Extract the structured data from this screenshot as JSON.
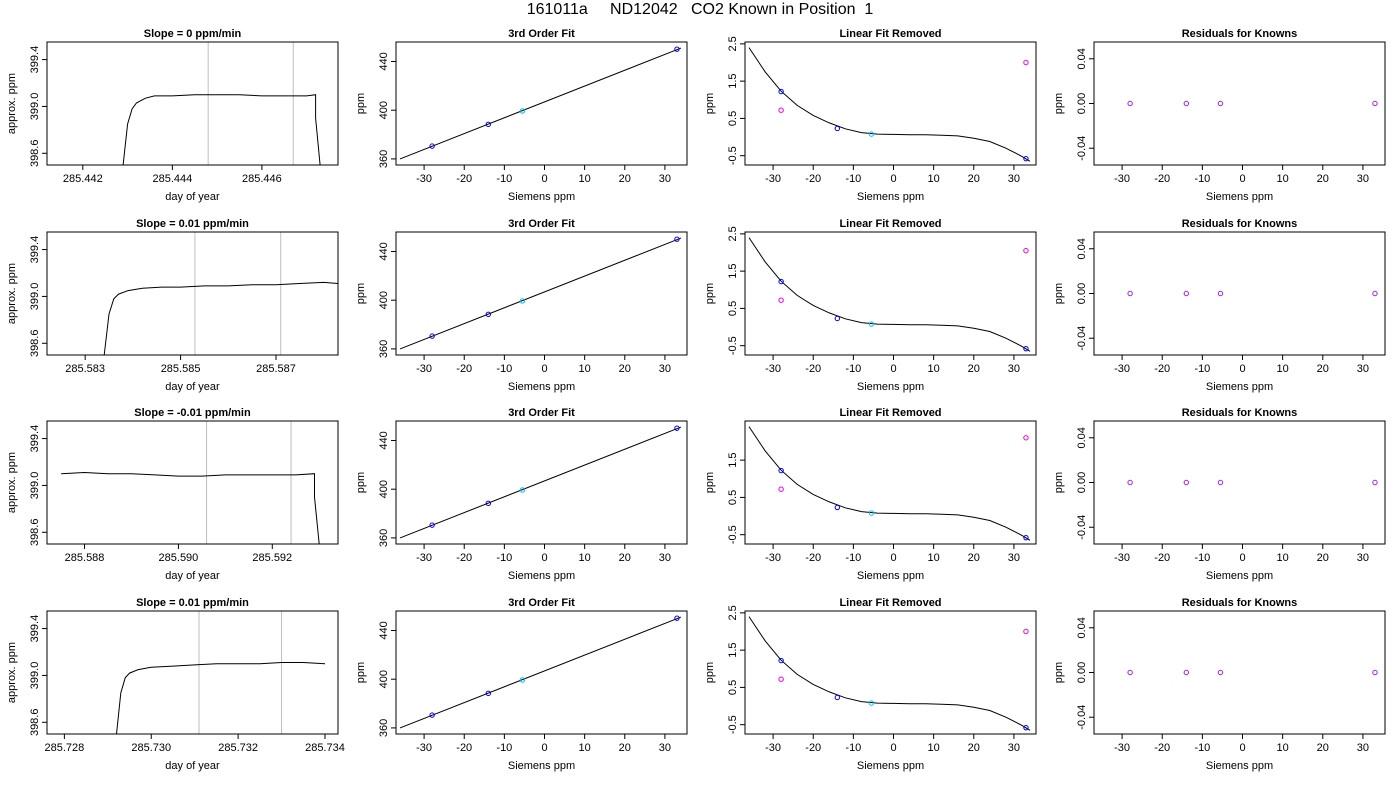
{
  "title": "161011a     ND12042   CO2 Known in Position  1",
  "colors": {
    "frame": "#000000",
    "trace": "#000000",
    "vline": "#bebebe",
    "known_blue": "#0000ff",
    "known_cyan": "#00bfff",
    "known_purple": "#a020f0",
    "known_magenta": "#ee00ee",
    "sample_magenta": "#ee00ee"
  },
  "chart_data": [
    {
      "type": "line",
      "title": "Slope =  0  ppm/min",
      "xlabel": "day of year",
      "ylabel": "approx. ppm",
      "xlim": [
        285.4412,
        285.4477
      ],
      "ylim": [
        398.5,
        399.55
      ],
      "xticks": [
        285.442,
        285.444,
        285.446
      ],
      "xtick_labels": [
        "285.442",
        "285.444",
        "285.446"
      ],
      "yticks": [
        398.6,
        399.0,
        399.4
      ],
      "ytick_labels": [
        "398.6",
        "399.0",
        "399.4"
      ],
      "vlines": [
        285.4448,
        285.4467
      ],
      "x": [
        285.4429,
        285.443,
        285.4431,
        285.4432,
        285.4434,
        285.4436,
        285.444,
        285.4445,
        285.445,
        285.4455,
        285.446,
        285.4465,
        285.447,
        285.4472,
        285.4472,
        285.4473
      ],
      "y": [
        398.5,
        398.85,
        398.98,
        399.03,
        399.07,
        399.09,
        399.09,
        399.1,
        399.1,
        399.1,
        399.09,
        399.09,
        399.09,
        399.1,
        398.9,
        398.5
      ]
    },
    {
      "type": "line",
      "title": "3rd Order Fit",
      "xlabel": "Siemens ppm",
      "ylabel": "ppm",
      "xlim": [
        -37,
        35.5
      ],
      "ylim": [
        355,
        456
      ],
      "xticks": [
        -30,
        -20,
        -10,
        0,
        10,
        20,
        30
      ],
      "xtick_labels": [
        "-30",
        "-20",
        "-10",
        "0",
        "10",
        "20",
        "30"
      ],
      "yticks": [
        360,
        400,
        440
      ],
      "ytick_labels": [
        "360",
        "400",
        "440"
      ],
      "line_x": [
        -36,
        34
      ],
      "line_y": [
        360,
        451
      ],
      "points": [
        {
          "x": -28,
          "y": 370.5
        },
        {
          "x": -14,
          "y": 388.4
        },
        {
          "x": -5.5,
          "y": 399.4
        },
        {
          "x": 33,
          "y": 450.1
        }
      ]
    },
    {
      "type": "line",
      "title": "Linear Fit Removed",
      "xlabel": "Siemens ppm",
      "ylabel": "ppm",
      "xlim": [
        -37,
        35.5
      ],
      "ylim": [
        -0.75,
        2.55
      ],
      "xticks": [
        -30,
        -20,
        -10,
        0,
        10,
        20,
        30
      ],
      "xtick_labels": [
        "-30",
        "-20",
        "-10",
        "0",
        "10",
        "20",
        "30"
      ],
      "yticks": [
        -0.5,
        0.5,
        1.5,
        2.5
      ],
      "ytick_labels": [
        "-0.5",
        "0.5",
        "1.5",
        "2.5"
      ],
      "curve_x": [
        -36,
        -32,
        -28,
        -24,
        -20,
        -16,
        -12,
        -8,
        -4,
        0,
        4,
        8,
        12,
        16,
        20,
        24,
        28,
        32,
        34
      ],
      "curve_y": [
        2.4,
        1.75,
        1.23,
        0.85,
        0.58,
        0.38,
        0.22,
        0.12,
        0.08,
        0.07,
        0.06,
        0.06,
        0.05,
        0.03,
        -0.03,
        -0.12,
        -0.3,
        -0.52,
        -0.65
      ],
      "points": [
        {
          "x": -28,
          "y": 1.22
        },
        {
          "x": -28,
          "y": 0.72
        },
        {
          "x": -14,
          "y": 0.23
        },
        {
          "x": -5.5,
          "y": 0.08
        },
        {
          "x": 33,
          "y": 2.0
        },
        {
          "x": 33,
          "y": -0.58
        }
      ]
    },
    {
      "type": "scatter",
      "title": "Residuals for Knowns",
      "xlabel": "Siemens ppm",
      "ylabel": "ppm",
      "xlim": [
        -37,
        35.5
      ],
      "ylim": [
        -0.055,
        0.055
      ],
      "xticks": [
        -30,
        -20,
        -10,
        0,
        10,
        20,
        30
      ],
      "xtick_labels": [
        "-30",
        "-20",
        "-10",
        "0",
        "10",
        "20",
        "30"
      ],
      "yticks": [
        -0.04,
        0.0,
        0.04
      ],
      "ytick_labels": [
        "-0.04",
        "0.00",
        "0.04"
      ],
      "points": [
        {
          "x": -28,
          "y": 0.0
        },
        {
          "x": -14,
          "y": 0.0
        },
        {
          "x": -5.5,
          "y": 0.0
        },
        {
          "x": 33,
          "y": 0.0
        }
      ]
    },
    {
      "type": "line",
      "title": "Slope =  0.01  ppm/min",
      "xlabel": "day of year",
      "ylabel": "approx. ppm",
      "xlim": [
        285.5822,
        285.5883
      ],
      "ylim": [
        398.5,
        399.55
      ],
      "xticks": [
        285.583,
        285.585,
        285.587
      ],
      "xtick_labels": [
        "285.583",
        "285.585",
        "285.587"
      ],
      "yticks": [
        398.6,
        399.0,
        399.4
      ],
      "ytick_labels": [
        "398.6",
        "399.0",
        "399.4"
      ],
      "vlines": [
        285.5853,
        285.5871
      ],
      "x": [
        285.5834,
        285.5835,
        285.5836,
        285.5837,
        285.5839,
        285.5842,
        285.5846,
        285.585,
        285.5855,
        285.586,
        285.5865,
        285.587,
        285.5875,
        285.588,
        285.5883
      ],
      "y": [
        398.5,
        398.85,
        398.98,
        399.02,
        399.05,
        399.07,
        399.08,
        399.08,
        399.09,
        399.09,
        399.1,
        399.1,
        399.11,
        399.12,
        399.11
      ]
    },
    {
      "type": "line",
      "title": "3rd Order Fit",
      "xlabel": "Siemens ppm",
      "ylabel": "ppm",
      "xlim": [
        -37,
        35.5
      ],
      "ylim": [
        355,
        456
      ],
      "xticks": [
        -30,
        -20,
        -10,
        0,
        10,
        20,
        30
      ],
      "xtick_labels": [
        "-30",
        "-20",
        "-10",
        "0",
        "10",
        "20",
        "30"
      ],
      "yticks": [
        360,
        400,
        440
      ],
      "ytick_labels": [
        "360",
        "400",
        "440"
      ],
      "line_x": [
        -36,
        34
      ],
      "line_y": [
        360,
        451
      ],
      "points": [
        {
          "x": -28,
          "y": 370.5
        },
        {
          "x": -14,
          "y": 388.4
        },
        {
          "x": -5.5,
          "y": 399.4
        },
        {
          "x": 33,
          "y": 450.1
        }
      ]
    },
    {
      "type": "line",
      "title": "Linear Fit Removed",
      "xlabel": "Siemens ppm",
      "ylabel": "ppm",
      "xlim": [
        -37,
        35.5
      ],
      "ylim": [
        -0.75,
        2.55
      ],
      "xticks": [
        -30,
        -20,
        -10,
        0,
        10,
        20,
        30
      ],
      "xtick_labels": [
        "-30",
        "-20",
        "-10",
        "0",
        "10",
        "20",
        "30"
      ],
      "yticks": [
        -0.5,
        0.5,
        1.5,
        2.5
      ],
      "ytick_labels": [
        "-0.5",
        "0.5",
        "1.5",
        "2.5"
      ],
      "curve_x": [
        -36,
        -32,
        -28,
        -24,
        -20,
        -16,
        -12,
        -8,
        -4,
        0,
        4,
        8,
        12,
        16,
        20,
        24,
        28,
        32,
        34
      ],
      "curve_y": [
        2.4,
        1.75,
        1.23,
        0.85,
        0.58,
        0.38,
        0.22,
        0.12,
        0.08,
        0.07,
        0.06,
        0.06,
        0.05,
        0.03,
        -0.03,
        -0.12,
        -0.3,
        -0.52,
        -0.65
      ],
      "points": [
        {
          "x": -28,
          "y": 1.22
        },
        {
          "x": -28,
          "y": 0.72
        },
        {
          "x": -14,
          "y": 0.23
        },
        {
          "x": -5.5,
          "y": 0.08
        },
        {
          "x": 33,
          "y": 2.05
        },
        {
          "x": 33,
          "y": -0.58
        }
      ]
    },
    {
      "type": "scatter",
      "title": "Residuals for Knowns",
      "xlabel": "Siemens ppm",
      "ylabel": "ppm",
      "xlim": [
        -37,
        35.5
      ],
      "ylim": [
        -0.055,
        0.055
      ],
      "xticks": [
        -30,
        -20,
        -10,
        0,
        10,
        20,
        30
      ],
      "xtick_labels": [
        "-30",
        "-20",
        "-10",
        "0",
        "10",
        "20",
        "30"
      ],
      "yticks": [
        -0.04,
        0.0,
        0.04
      ],
      "ytick_labels": [
        "-0.04",
        "0.00",
        "0.04"
      ],
      "points": [
        {
          "x": -28,
          "y": 0.0
        },
        {
          "x": -14,
          "y": 0.0
        },
        {
          "x": -5.5,
          "y": 0.0
        },
        {
          "x": 33,
          "y": 0.0
        }
      ]
    },
    {
      "type": "line",
      "title": "Slope =  -0.01  ppm/min",
      "xlabel": "day of year",
      "ylabel": "approx. ppm",
      "xlim": [
        285.5872,
        285.5934
      ],
      "ylim": [
        398.5,
        399.55
      ],
      "xticks": [
        285.588,
        285.59,
        285.592
      ],
      "xtick_labels": [
        "285.588",
        "285.590",
        "285.592"
      ],
      "yticks": [
        398.6,
        399.0,
        399.4
      ],
      "ytick_labels": [
        "398.6",
        "399.0",
        "399.4"
      ],
      "vlines": [
        285.5906,
        285.5924
      ],
      "x": [
        285.5875,
        285.588,
        285.5885,
        285.589,
        285.5895,
        285.59,
        285.5905,
        285.591,
        285.5915,
        285.592,
        285.5925,
        285.5929,
        285.5929,
        285.593
      ],
      "y": [
        399.1,
        399.11,
        399.1,
        399.1,
        399.09,
        399.08,
        399.08,
        399.09,
        399.09,
        399.09,
        399.09,
        399.1,
        398.9,
        398.5
      ]
    },
    {
      "type": "line",
      "title": "3rd Order Fit",
      "xlabel": "Siemens ppm",
      "ylabel": "ppm",
      "xlim": [
        -37,
        35.5
      ],
      "ylim": [
        355,
        456
      ],
      "xticks": [
        -30,
        -20,
        -10,
        0,
        10,
        20,
        30
      ],
      "xtick_labels": [
        "-30",
        "-20",
        "-10",
        "0",
        "10",
        "20",
        "30"
      ],
      "yticks": [
        360,
        400,
        440
      ],
      "ytick_labels": [
        "360",
        "400",
        "440"
      ],
      "line_x": [
        -36,
        34
      ],
      "line_y": [
        360,
        451
      ],
      "points": [
        {
          "x": -28,
          "y": 370.5
        },
        {
          "x": -14,
          "y": 388.4
        },
        {
          "x": -5.5,
          "y": 399.4
        },
        {
          "x": 33,
          "y": 450.1
        }
      ]
    },
    {
      "type": "line",
      "title": "Linear Fit Removed",
      "xlabel": "Siemens ppm",
      "ylabel": "ppm",
      "xlim": [
        -37,
        35.5
      ],
      "ylim": [
        -0.75,
        2.55
      ],
      "xticks": [
        -30,
        -20,
        -10,
        0,
        10,
        20,
        30
      ],
      "xtick_labels": [
        "-30",
        "-20",
        "-10",
        "0",
        "10",
        "20",
        "30"
      ],
      "yticks": [
        -0.5,
        0.5,
        1.5
      ],
      "ytick_labels": [
        "-0.5",
        "0.5",
        "1.5"
      ],
      "curve_x": [
        -36,
        -32,
        -28,
        -24,
        -20,
        -16,
        -12,
        -8,
        -4,
        0,
        4,
        8,
        12,
        16,
        20,
        24,
        28,
        32,
        34
      ],
      "curve_y": [
        2.4,
        1.75,
        1.23,
        0.85,
        0.58,
        0.38,
        0.22,
        0.12,
        0.08,
        0.07,
        0.06,
        0.06,
        0.05,
        0.03,
        -0.03,
        -0.12,
        -0.3,
        -0.52,
        -0.65
      ],
      "points": [
        {
          "x": -28,
          "y": 1.22
        },
        {
          "x": -28,
          "y": 0.72
        },
        {
          "x": -14,
          "y": 0.23
        },
        {
          "x": -5.5,
          "y": 0.08
        },
        {
          "x": 33,
          "y": 2.1
        },
        {
          "x": 33,
          "y": -0.58
        }
      ]
    },
    {
      "type": "scatter",
      "title": "Residuals for Knowns",
      "xlabel": "Siemens ppm",
      "ylabel": "ppm",
      "xlim": [
        -37,
        35.5
      ],
      "ylim": [
        -0.055,
        0.055
      ],
      "xticks": [
        -30,
        -20,
        -10,
        0,
        10,
        20,
        30
      ],
      "xtick_labels": [
        "-30",
        "-20",
        "-10",
        "0",
        "10",
        "20",
        "30"
      ],
      "yticks": [
        -0.04,
        0.0,
        0.04
      ],
      "ytick_labels": [
        "-0.04",
        "0.00",
        "0.04"
      ],
      "points": [
        {
          "x": -28,
          "y": 0.0
        },
        {
          "x": -14,
          "y": 0.0
        },
        {
          "x": -5.5,
          "y": 0.0
        },
        {
          "x": 33,
          "y": 0.0
        }
      ]
    },
    {
      "type": "line",
      "title": "Slope =  0.01  ppm/min",
      "xlabel": "day of year",
      "ylabel": "approx. ppm",
      "xlim": [
        285.7276,
        285.7343
      ],
      "ylim": [
        398.5,
        399.55
      ],
      "xticks": [
        285.728,
        285.73,
        285.732,
        285.734
      ],
      "xtick_labels": [
        "285.728",
        "285.730",
        "285.732",
        "285.734"
      ],
      "yticks": [
        398.6,
        399.0,
        399.4
      ],
      "ytick_labels": [
        "398.6",
        "399.0",
        "399.4"
      ],
      "vlines": [
        285.7311,
        285.733
      ],
      "x": [
        285.7292,
        285.7293,
        285.7294,
        285.7295,
        285.7297,
        285.73,
        285.7305,
        285.731,
        285.7315,
        285.732,
        285.7325,
        285.733,
        285.7335,
        285.734
      ],
      "y": [
        398.5,
        398.85,
        398.98,
        399.02,
        399.05,
        399.07,
        399.08,
        399.09,
        399.1,
        399.1,
        399.1,
        399.11,
        399.11,
        399.1
      ]
    },
    {
      "type": "line",
      "title": "3rd Order Fit",
      "xlabel": "Siemens ppm",
      "ylabel": "ppm",
      "xlim": [
        -37,
        35.5
      ],
      "ylim": [
        355,
        456
      ],
      "xticks": [
        -30,
        -20,
        -10,
        0,
        10,
        20,
        30
      ],
      "xtick_labels": [
        "-30",
        "-20",
        "-10",
        "0",
        "10",
        "20",
        "30"
      ],
      "yticks": [
        360,
        400,
        440
      ],
      "ytick_labels": [
        "360",
        "400",
        "440"
      ],
      "line_x": [
        -36,
        34
      ],
      "line_y": [
        360,
        451
      ],
      "points": [
        {
          "x": -28,
          "y": 370.5
        },
        {
          "x": -14,
          "y": 388.4
        },
        {
          "x": -5.5,
          "y": 399.4
        },
        {
          "x": 33,
          "y": 450.1
        }
      ]
    },
    {
      "type": "line",
      "title": "Linear Fit Removed",
      "xlabel": "Siemens ppm",
      "ylabel": "ppm",
      "xlim": [
        -37,
        35.5
      ],
      "ylim": [
        -0.75,
        2.55
      ],
      "xticks": [
        -30,
        -20,
        -10,
        0,
        10,
        20,
        30
      ],
      "xtick_labels": [
        "-30",
        "-20",
        "-10",
        "0",
        "10",
        "20",
        "30"
      ],
      "yticks": [
        -0.5,
        0.5,
        1.5,
        2.5
      ],
      "ytick_labels": [
        "-0.5",
        "0.5",
        "1.5",
        "2.5"
      ],
      "curve_x": [
        -36,
        -32,
        -28,
        -24,
        -20,
        -16,
        -12,
        -8,
        -4,
        0,
        4,
        8,
        12,
        16,
        20,
        24,
        28,
        32,
        34
      ],
      "curve_y": [
        2.4,
        1.75,
        1.23,
        0.85,
        0.58,
        0.38,
        0.22,
        0.12,
        0.08,
        0.07,
        0.06,
        0.06,
        0.05,
        0.03,
        -0.03,
        -0.12,
        -0.3,
        -0.52,
        -0.65
      ],
      "points": [
        {
          "x": -28,
          "y": 1.22
        },
        {
          "x": -28,
          "y": 0.72
        },
        {
          "x": -14,
          "y": 0.23
        },
        {
          "x": -5.5,
          "y": 0.08
        },
        {
          "x": 33,
          "y": 2.0
        },
        {
          "x": 33,
          "y": -0.58
        }
      ]
    },
    {
      "type": "scatter",
      "title": "Residuals for Knowns",
      "xlabel": "Siemens ppm",
      "ylabel": "ppm",
      "xlim": [
        -37,
        35.5
      ],
      "ylim": [
        -0.055,
        0.055
      ],
      "xticks": [
        -30,
        -20,
        -10,
        0,
        10,
        20,
        30
      ],
      "xtick_labels": [
        "-30",
        "-20",
        "-10",
        "0",
        "10",
        "20",
        "30"
      ],
      "yticks": [
        -0.04,
        0.0,
        0.04
      ],
      "ytick_labels": [
        "-0.04",
        "0.00",
        "0.04"
      ],
      "points": [
        {
          "x": -28,
          "y": 0.0
        },
        {
          "x": -14,
          "y": 0.0
        },
        {
          "x": -5.5,
          "y": 0.0
        },
        {
          "x": 33,
          "y": 0.0
        }
      ]
    }
  ]
}
